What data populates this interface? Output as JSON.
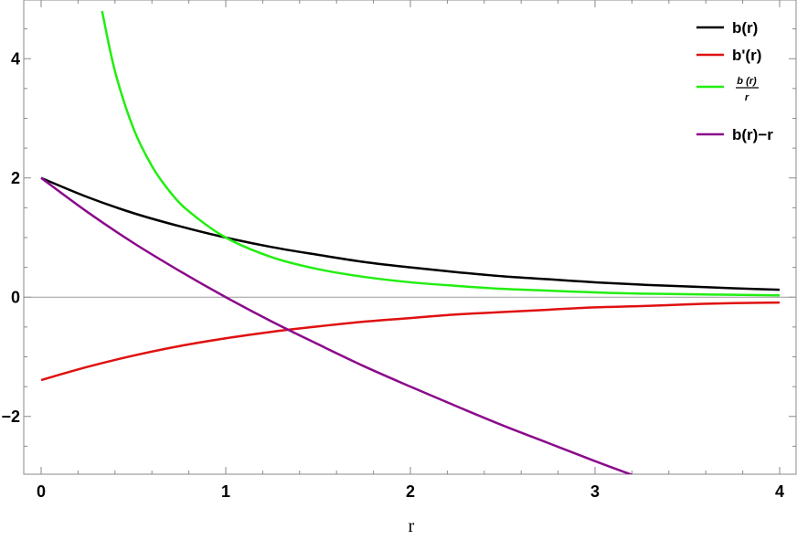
{
  "chart_data": {
    "type": "line",
    "title": "",
    "xlabel": "r",
    "ylabel": "",
    "xlim": [
      0,
      4
    ],
    "ylim": [
      -3,
      5
    ],
    "x_ticks": [
      0,
      1,
      2,
      3,
      4
    ],
    "x_tick_labels": [
      "0",
      "1",
      "2",
      "3",
      "4"
    ],
    "y_ticks": [
      -2,
      0,
      2,
      4
    ],
    "y_tick_labels": [
      "−2",
      "0",
      "2",
      "4"
    ],
    "grid": false,
    "legend_position": "top-right",
    "series": [
      {
        "name": "b(r)",
        "color": "#000000",
        "x": [
          0,
          0.25,
          0.5,
          0.75,
          1,
          1.25,
          1.5,
          1.75,
          2,
          2.25,
          2.5,
          2.75,
          3,
          3.25,
          3.5,
          3.75,
          4
        ],
        "y": [
          2.0,
          1.68,
          1.41,
          1.19,
          1.0,
          0.84,
          0.71,
          0.59,
          0.5,
          0.42,
          0.35,
          0.3,
          0.25,
          0.21,
          0.18,
          0.15,
          0.125
        ]
      },
      {
        "name": "b'(r)",
        "color": "#e01010",
        "x": [
          0,
          0.25,
          0.5,
          0.75,
          1,
          1.25,
          1.5,
          1.75,
          2,
          2.25,
          2.5,
          2.75,
          3,
          3.25,
          3.5,
          3.75,
          4
        ],
        "y": [
          -1.39,
          -1.17,
          -0.98,
          -0.82,
          -0.69,
          -0.58,
          -0.49,
          -0.41,
          -0.35,
          -0.29,
          -0.25,
          -0.21,
          -0.17,
          -0.15,
          -0.12,
          -0.1,
          -0.09
        ]
      },
      {
        "name_num": "b (r)",
        "name_den": "r",
        "color": "#22ee11",
        "x": [
          0.33,
          0.4,
          0.5,
          0.6,
          0.7,
          0.8,
          1,
          1.25,
          1.5,
          1.75,
          2,
          2.25,
          2.5,
          2.75,
          3,
          3.25,
          3.5,
          3.75,
          4
        ],
        "y": [
          4.8,
          3.79,
          2.83,
          2.2,
          1.76,
          1.44,
          1.0,
          0.67,
          0.47,
          0.34,
          0.25,
          0.19,
          0.14,
          0.11,
          0.08,
          0.06,
          0.05,
          0.04,
          0.03
        ]
      },
      {
        "name": "b(r)−r",
        "color": "#8b0a8b",
        "x": [
          0,
          0.25,
          0.5,
          0.75,
          1,
          1.25,
          1.5,
          1.75,
          2,
          2.25,
          2.5,
          2.75,
          3,
          3.2
        ],
        "y": [
          2.0,
          1.43,
          0.91,
          0.44,
          0.0,
          -0.41,
          -0.79,
          -1.16,
          -1.5,
          -1.83,
          -2.15,
          -2.45,
          -2.75,
          -2.98
        ]
      }
    ]
  }
}
